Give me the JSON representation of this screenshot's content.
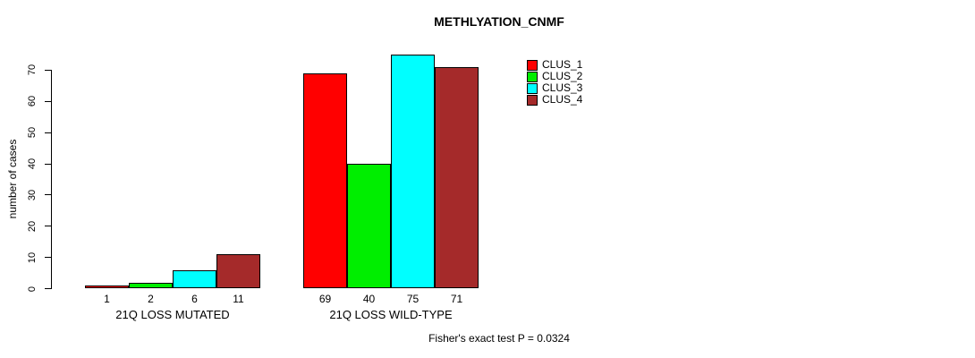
{
  "title": "METHLYATION_CNMF",
  "footer": "Fisher's exact test P = 0.0324",
  "y_axis": {
    "label": "number of cases",
    "ticks": [
      0,
      10,
      20,
      30,
      40,
      50,
      60,
      70
    ]
  },
  "chart_data": {
    "type": "bar",
    "title": "METHLYATION_CNMF",
    "xlabel": "",
    "ylabel": "number of cases",
    "ylim": [
      0,
      75
    ],
    "yticks": [
      0,
      10,
      20,
      30,
      40,
      50,
      60,
      70
    ],
    "grid": false,
    "legend_position": "top-right",
    "categories": [
      "21Q LOSS MUTATED",
      "21Q LOSS WILD-TYPE"
    ],
    "series": [
      {
        "name": "CLUS_1",
        "color": "#FF0000",
        "values": [
          1,
          69
        ]
      },
      {
        "name": "CLUS_2",
        "color": "#00EE00",
        "values": [
          2,
          40
        ]
      },
      {
        "name": "CLUS_3",
        "color": "#00FFFF",
        "values": [
          6,
          75
        ]
      },
      {
        "name": "CLUS_4",
        "color": "#A52A2A",
        "values": [
          11,
          71
        ]
      }
    ],
    "bar_value_labels": {
      "21Q LOSS MUTATED": [
        1,
        2,
        6,
        11
      ],
      "21Q LOSS WILD-TYPE": [
        69,
        40,
        75,
        71
      ]
    },
    "annotation": "Fisher's exact test P = 0.0324"
  }
}
